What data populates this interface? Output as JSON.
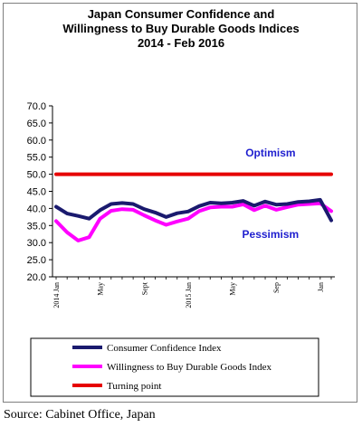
{
  "chart_data": {
    "type": "line",
    "title_lines": [
      "Japan Consumer Confidence and",
      "Willingness to Buy Durable Goods Indices",
      "2014 - Feb  2016"
    ],
    "ylim": [
      20,
      70
    ],
    "yticks": [
      "20.0",
      "25.0",
      "30.0",
      "35.0",
      "40.0",
      "45.0",
      "50.0",
      "55.0",
      "60.0",
      "65.0",
      "70.0"
    ],
    "xlim": [
      "2014-01",
      "2016-02"
    ],
    "xticks": [
      {
        "label": "2014 Jan",
        "x": "2014-01"
      },
      {
        "label": "May",
        "x": "2014-05"
      },
      {
        "label": "Sept",
        "x": "2014-09"
      },
      {
        "label": "2015 Jan",
        "x": "2015-01"
      },
      {
        "label": "May",
        "x": "2015-05"
      },
      {
        "label": "Sep",
        "x": "2015-09"
      },
      {
        "label": "Jan",
        "x": "2016-01"
      }
    ],
    "x": [
      "2014-01",
      "2014-02",
      "2014-03",
      "2014-04",
      "2014-05",
      "2014-06",
      "2014-07",
      "2014-08",
      "2014-09",
      "2014-10",
      "2014-11",
      "2014-12",
      "2015-01",
      "2015-02",
      "2015-03",
      "2015-04",
      "2015-05",
      "2015-06",
      "2015-07",
      "2015-08",
      "2015-09",
      "2015-10",
      "2015-11",
      "2015-12",
      "2016-01",
      "2016-02"
    ],
    "series": [
      {
        "name": "Consumer Confidence Index",
        "color": "#1a1a6e",
        "values": [
          40.5,
          38.5,
          37.8,
          37.0,
          39.5,
          41.3,
          41.6,
          41.3,
          39.8,
          38.8,
          37.5,
          38.6,
          39.1,
          40.7,
          41.7,
          41.5,
          41.7,
          42.2,
          40.8,
          42.0,
          41.1,
          41.3,
          41.9,
          42.1,
          42.5,
          36.5
        ]
      },
      {
        "name": "Willingness to Buy Durable Goods Index",
        "color": "#ff00ff",
        "values": [
          36.3,
          33.0,
          30.6,
          31.6,
          37.0,
          39.3,
          39.8,
          39.6,
          38.0,
          36.5,
          35.2,
          36.2,
          37.0,
          39.2,
          40.3,
          40.5,
          40.5,
          41.2,
          39.5,
          40.8,
          39.6,
          40.4,
          41.1,
          41.3,
          41.5,
          39.2
        ]
      },
      {
        "name": "Turning point",
        "color": "#e60000",
        "values": [
          50,
          50,
          50,
          50,
          50,
          50,
          50,
          50,
          50,
          50,
          50,
          50,
          50,
          50,
          50,
          50,
          50,
          50,
          50,
          50,
          50,
          50,
          50,
          50,
          50,
          50
        ]
      }
    ],
    "annotations": [
      {
        "text": "Optimism",
        "x": "2015-07",
        "y": 56.2
      },
      {
        "text": "Pessimism",
        "x": "2015-07",
        "y": 32.5
      }
    ],
    "grid": false,
    "legend": "bottom",
    "colors": {
      "annotation": "#1f1fcf",
      "axis": "#000000"
    }
  },
  "source": "Source: Cabinet Office, Japan"
}
